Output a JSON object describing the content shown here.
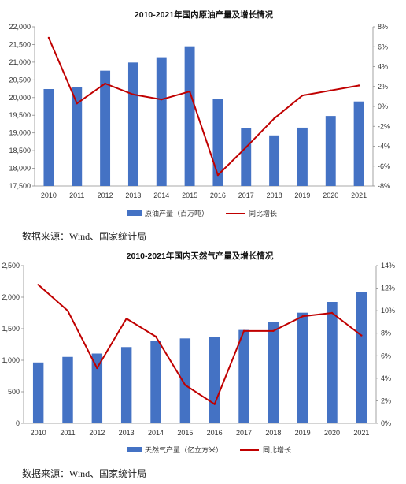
{
  "chart_data": [
    {
      "type": "bar",
      "title": "2010-2021年国内原油产量及增长情况",
      "categories": [
        "2010",
        "2011",
        "2012",
        "2013",
        "2014",
        "2015",
        "2016",
        "2017",
        "2018",
        "2019",
        "2020",
        "2021"
      ],
      "series": [
        {
          "name": "原油产量（百万吨）",
          "type": "bar",
          "axis": "left",
          "values": [
            20240,
            20290,
            20760,
            20990,
            21140,
            21450,
            19970,
            19140,
            18930,
            19150,
            19480,
            19890
          ],
          "color": "#4472C4"
        },
        {
          "name": "同比增长",
          "type": "line",
          "axis": "right",
          "values": [
            6.9,
            0.3,
            2.3,
            1.2,
            0.7,
            1.5,
            -6.9,
            -4.1,
            -1.2,
            1.1,
            1.6,
            2.1
          ],
          "color": "#C00000"
        }
      ],
      "ylim_left": [
        17500,
        22000
      ],
      "yticks_left": [
        17500,
        18000,
        18500,
        19000,
        19500,
        20000,
        20500,
        21000,
        21500,
        22000
      ],
      "ytick_labels_left": [
        "17,500",
        "18,000",
        "18,500",
        "19,000",
        "19,500",
        "20,000",
        "20,500",
        "21,000",
        "21,500",
        "22,000"
      ],
      "ylim_right": [
        -8,
        8
      ],
      "yticks_right": [
        -8,
        -6,
        -4,
        -2,
        0,
        2,
        4,
        6,
        8
      ],
      "ytick_labels_right": [
        "-8%",
        "-6%",
        "-4%",
        "-2%",
        "0%",
        "2%",
        "4%",
        "6%",
        "8%"
      ],
      "grid": false,
      "legend": "bottom",
      "source": "数据来源：Wind、国家统计局"
    },
    {
      "type": "bar",
      "title": "2010-2021年国内天然气产量及增长情况",
      "categories": [
        "2010",
        "2011",
        "2012",
        "2013",
        "2014",
        "2015",
        "2016",
        "2017",
        "2018",
        "2019",
        "2020",
        "2021"
      ],
      "series": [
        {
          "name": "天然气产量（亿立方米）",
          "type": "bar",
          "axis": "left",
          "values": [
            965,
            1053,
            1106,
            1209,
            1302,
            1346,
            1369,
            1480,
            1602,
            1754,
            1925,
            2076
          ],
          "color": "#4472C4"
        },
        {
          "name": "同比增长",
          "type": "line",
          "axis": "right",
          "values": [
            12.3,
            10.0,
            4.9,
            9.3,
            7.7,
            3.4,
            1.7,
            8.2,
            8.2,
            9.5,
            9.8,
            7.8
          ],
          "color": "#C00000"
        }
      ],
      "ylim_left": [
        0,
        2500
      ],
      "yticks_left": [
        0,
        500,
        1000,
        1500,
        2000,
        2500
      ],
      "ytick_labels_left": [
        "0",
        "500",
        "1,000",
        "1,500",
        "2,000",
        "2,500"
      ],
      "ylim_right": [
        0,
        14
      ],
      "yticks_right": [
        0,
        2,
        4,
        6,
        8,
        10,
        12,
        14
      ],
      "ytick_labels_right": [
        "0%",
        "2%",
        "4%",
        "6%",
        "8%",
        "10%",
        "12%",
        "14%"
      ],
      "grid": false,
      "legend": "bottom",
      "source": "数据来源：Wind、国家统计局"
    }
  ]
}
